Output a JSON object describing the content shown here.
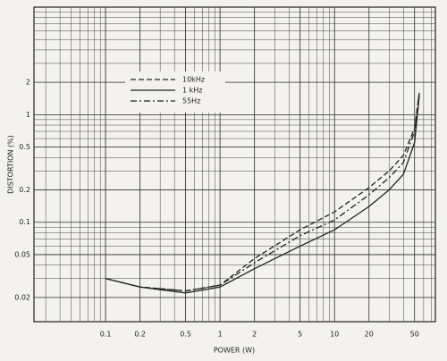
{
  "chart_data": {
    "type": "line",
    "x_label": "POWER (W)",
    "y_label": "DISTORTION (%)",
    "log_x": true,
    "log_y": true,
    "grid": true,
    "xlim": [
      0.0237,
      76
    ],
    "ylim": [
      0.0119,
      10
    ],
    "xticks": [
      0.1,
      0.2,
      0.5,
      1,
      2,
      5,
      10,
      20,
      50
    ],
    "yticks": [
      0.02,
      0.05,
      0.1,
      0.2,
      0.5,
      1,
      2
    ],
    "x": [
      0.1,
      0.2,
      0.5,
      1,
      2,
      5,
      10,
      20,
      30,
      40,
      50,
      55
    ],
    "series": [
      {
        "name": "10kHz",
        "color": "#222",
        "linestyle": "dashed",
        "values": [
          0.03,
          0.025,
          0.023,
          0.026,
          0.046,
          0.085,
          0.125,
          0.21,
          0.3,
          0.42,
          0.75,
          1.6
        ]
      },
      {
        "name": "1 kHz",
        "color": "#222",
        "linestyle": "solid",
        "values": [
          0.03,
          0.025,
          0.022,
          0.025,
          0.037,
          0.06,
          0.085,
          0.14,
          0.2,
          0.28,
          0.55,
          1.5
        ]
      },
      {
        "name": "55Hz",
        "color": "#222",
        "linestyle": "dashdot",
        "values": [
          0.03,
          0.025,
          0.023,
          0.026,
          0.042,
          0.075,
          0.105,
          0.18,
          0.26,
          0.36,
          0.7,
          1.6
        ]
      }
    ]
  }
}
